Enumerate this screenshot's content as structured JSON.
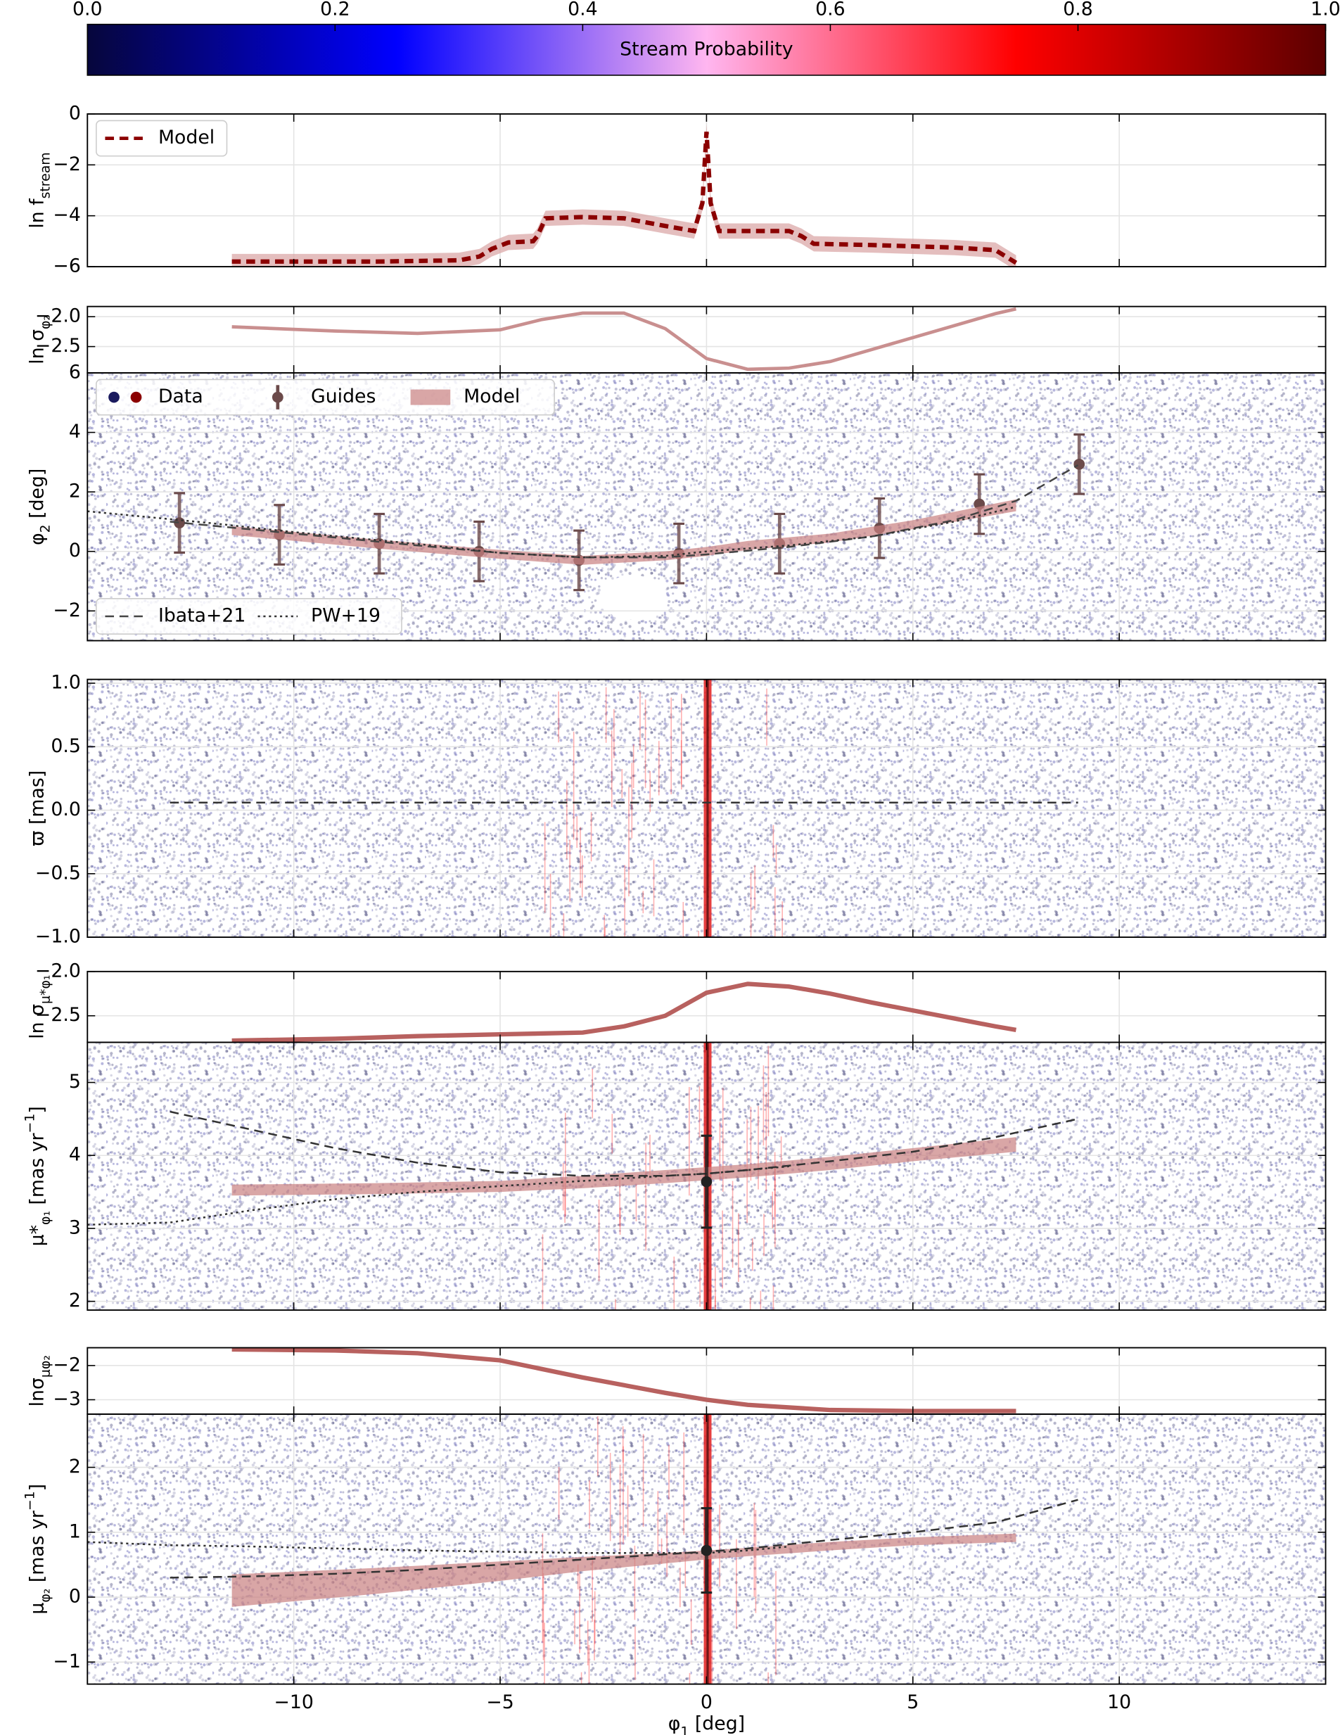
{
  "chart_data": [
    {
      "type": "colorbar",
      "label": "Stream Probability",
      "xlim": [
        0,
        1
      ],
      "xticks": [
        {
          "value": 0,
          "label": "0.0"
        },
        0.2,
        0.4,
        0.6,
        0.8,
        {
          "value": 1,
          "label": "1.0"
        }
      ],
      "colormap": [
        "#06063c",
        "#0000ff",
        "#ffb6f0",
        "#ff0000",
        "#5c0000"
      ]
    },
    {
      "type": "line",
      "ylabel": [
        {
          "text": "ln f"
        },
        {
          "text": "stream",
          "sub": true
        }
      ],
      "ylim": [
        -6,
        0
      ],
      "yticks": [
        {
          "value": -6,
          "label": "−6"
        },
        {
          "value": -4,
          "label": "−4"
        },
        {
          "value": -2,
          "label": "−2"
        },
        0
      ],
      "grid": true,
      "legend_loc": [
        "upper left"
      ],
      "series": [
        {
          "kind": "band",
          "color": "#d9a3a3",
          "x": [
            -11.5,
            -8,
            -6,
            -5.5,
            -5.2,
            -4.8,
            -4.2,
            -4.1,
            -3.9,
            -3,
            -2,
            -1,
            -0.3,
            -0.1,
            0,
            0.1,
            0.3,
            1,
            2,
            2.3,
            2.6,
            4,
            6,
            7,
            7.5
          ],
          "lower": [
            -6.1,
            -6.1,
            -6.05,
            -5.9,
            -5.6,
            -5.35,
            -5.3,
            -5.1,
            -4.4,
            -4.35,
            -4.4,
            -4.7,
            -4.9,
            -3.8,
            -1.0,
            -3.8,
            -4.9,
            -4.9,
            -4.9,
            -5.1,
            -5.4,
            -5.45,
            -5.55,
            -5.65,
            -6.15
          ],
          "upper": [
            -5.5,
            -5.5,
            -5.45,
            -5.3,
            -5.0,
            -4.75,
            -4.7,
            -4.5,
            -3.8,
            -3.75,
            -3.8,
            -4.1,
            -4.3,
            -3.2,
            -0.4,
            -3.2,
            -4.3,
            -4.3,
            -4.3,
            -4.5,
            -4.8,
            -4.85,
            -4.95,
            -5.05,
            -5.55
          ]
        },
        {
          "name": "Model",
          "kind": "line",
          "style": "dashed",
          "color": "#8b0000",
          "width": 4,
          "legend": 0,
          "x": [
            -11.5,
            -8,
            -6,
            -5.5,
            -5.2,
            -4.8,
            -4.2,
            -4.1,
            -3.9,
            -3,
            -2,
            -1,
            -0.3,
            -0.1,
            0,
            0.1,
            0.3,
            1,
            2,
            2.3,
            2.6,
            4,
            6,
            7,
            7.5
          ],
          "values": [
            -5.8,
            -5.8,
            -5.75,
            -5.6,
            -5.3,
            -5.05,
            -5.0,
            -4.8,
            -4.1,
            -4.05,
            -4.1,
            -4.4,
            -4.6,
            -3.5,
            -0.7,
            -3.5,
            -4.6,
            -4.6,
            -4.6,
            -4.8,
            -5.1,
            -5.15,
            -5.25,
            -5.35,
            -5.85
          ]
        }
      ]
    },
    {
      "type": "line",
      "ylabel": [
        {
          "text": "ln σ"
        },
        {
          "text": "φ₂",
          "sub": true
        }
      ],
      "ylim": [
        -2.94,
        -1.83
      ],
      "yticks": [
        {
          "value": -2.5,
          "label": "−2.5"
        },
        {
          "value": -2.0,
          "label": "−2.0"
        }
      ],
      "grid": true,
      "series": [
        {
          "kind": "line",
          "style": "solid",
          "color": "#c98f8f",
          "width": 3,
          "x": [
            -11.5,
            -9,
            -7,
            -5,
            -4,
            -3,
            -2,
            -1,
            0,
            1,
            2,
            3,
            4,
            5,
            6,
            7,
            7.5
          ],
          "values": [
            -2.17,
            -2.24,
            -2.28,
            -2.22,
            -2.05,
            -1.94,
            -1.94,
            -2.2,
            -2.7,
            -2.88,
            -2.86,
            -2.75,
            -2.55,
            -2.35,
            -2.15,
            -1.95,
            -1.87
          ]
        }
      ]
    },
    {
      "type": "scatter",
      "ylabel": [
        {
          "text": "φ"
        },
        {
          "text": "2",
          "sub": true
        },
        {
          "text": " [deg]"
        }
      ],
      "ylim": [
        -3,
        6
      ],
      "yticks": [
        {
          "value": -2,
          "label": "−2"
        },
        0,
        2,
        4,
        6
      ],
      "grid": true,
      "background": "scatter",
      "legend_loc": [
        "upper left",
        "lower left"
      ],
      "series": [
        {
          "name": "Data",
          "kind": "texture",
          "colors": [
            "#1a1a5e",
            "#8b0000"
          ],
          "legend": 0
        },
        {
          "name": "Guides",
          "kind": "errorbar",
          "color": "#6b4a4a",
          "legend": 0,
          "x": [
            -12.77,
            -10.35,
            -7.93,
            -5.51,
            -3.09,
            -0.67,
            1.77,
            4.19,
            6.61,
            9.03
          ],
          "values": [
            0.96,
            0.56,
            0.26,
            0.0,
            -0.3,
            -0.07,
            0.26,
            0.78,
            1.59,
            2.93
          ],
          "err": [
            1,
            1,
            1,
            1,
            1,
            1,
            1,
            1,
            1,
            1
          ]
        },
        {
          "name": "Model",
          "kind": "band",
          "color": "#c98080",
          "legend": 0,
          "x": [
            -11.5,
            -8,
            -5,
            -3,
            -1,
            0,
            1,
            3,
            5,
            7.5
          ],
          "lower": [
            0.55,
            0.1,
            -0.25,
            -0.45,
            -0.3,
            -0.15,
            0.05,
            0.3,
            0.75,
            1.35
          ],
          "upper": [
            0.85,
            0.4,
            0.05,
            -0.15,
            0.0,
            0.15,
            0.35,
            0.6,
            1.05,
            1.75
          ]
        },
        {
          "name": "Ibata+21",
          "kind": "line",
          "style": "dashed",
          "color": "#444444",
          "width": 1.6,
          "legend": 1,
          "x": [
            -13,
            -10,
            -7,
            -5,
            -3,
            -1,
            0,
            2,
            4,
            6,
            7.5,
            9
          ],
          "values": [
            1.0,
            0.6,
            0.2,
            -0.05,
            -0.2,
            -0.2,
            -0.1,
            0.15,
            0.5,
            1.05,
            1.7,
            2.9
          ]
        },
        {
          "name": "PW+19",
          "kind": "line",
          "style": "dotted",
          "color": "#333333",
          "width": 1.6,
          "legend": 1,
          "x": [
            -15,
            -12,
            -10,
            -7,
            -5,
            -3,
            -1,
            0,
            2,
            4,
            6,
            7.5
          ],
          "values": [
            1.35,
            0.95,
            0.65,
            0.25,
            -0.05,
            -0.2,
            -0.15,
            0.0,
            0.2,
            0.5,
            1.0,
            1.5
          ]
        }
      ]
    },
    {
      "type": "scatter",
      "ylabel": [
        {
          "text": "ϖ [mas]"
        }
      ],
      "ylim": [
        -1.0,
        1.03
      ],
      "yticks": [
        {
          "value": -1.0,
          "label": "−1.0"
        },
        {
          "value": -0.5,
          "label": "−0.5"
        },
        {
          "value": 0,
          "label": "0.0"
        },
        0.5,
        {
          "value": 1.0,
          "label": "1.0"
        }
      ],
      "grid": true,
      "background": "scatter",
      "stream_strip": true,
      "series": [
        {
          "kind": "line",
          "style": "dashed",
          "color": "#333333",
          "width": 1.6,
          "x": [
            -13,
            9
          ],
          "values": [
            0.06,
            0.06
          ]
        }
      ]
    },
    {
      "type": "line",
      "ylabel": [
        {
          "text": "ln σ"
        },
        {
          "text": "μ*φ₁",
          "sub": true
        }
      ],
      "ylim": [
        -2.8,
        -2.0
      ],
      "yticks": [
        {
          "value": -2.5,
          "label": "−2.5"
        },
        {
          "value": -2.0,
          "label": "−2.0"
        }
      ],
      "grid": true,
      "series": [
        {
          "kind": "line",
          "style": "solid",
          "color": "#b8615f",
          "width": 4,
          "x": [
            -11.5,
            -9,
            -7,
            -5,
            -3,
            -2,
            -1,
            0,
            1,
            2,
            3,
            4,
            5,
            6,
            7,
            7.5
          ],
          "values": [
            -2.78,
            -2.76,
            -2.73,
            -2.71,
            -2.69,
            -2.62,
            -2.5,
            -2.24,
            -2.14,
            -2.17,
            -2.25,
            -2.35,
            -2.44,
            -2.53,
            -2.62,
            -2.66
          ]
        }
      ]
    },
    {
      "type": "scatter",
      "ylabel": [
        {
          "text": "μ*"
        },
        {
          "text": "φ₁",
          "sub": true
        },
        {
          "text": " [mas yr"
        },
        {
          "text": "−1",
          "sup": true
        },
        {
          "text": "]"
        }
      ],
      "ylim": [
        1.88,
        5.55
      ],
      "yticks": [
        2,
        3,
        4,
        5
      ],
      "grid": true,
      "background": "scatter",
      "stream_strip": true,
      "series": [
        {
          "kind": "band",
          "color": "#c98080",
          "x": [
            -11.5,
            -8,
            -5,
            -3,
            -1,
            0,
            1,
            3,
            5,
            7.5
          ],
          "lower": [
            3.45,
            3.47,
            3.5,
            3.55,
            3.62,
            3.66,
            3.7,
            3.8,
            3.92,
            4.05
          ],
          "upper": [
            3.6,
            3.62,
            3.65,
            3.72,
            3.8,
            3.84,
            3.88,
            3.98,
            4.1,
            4.25
          ]
        },
        {
          "kind": "line",
          "style": "dashed",
          "color": "#333333",
          "width": 1.6,
          "x": [
            -13,
            -11,
            -9,
            -7,
            -5,
            -3,
            -1,
            0,
            1,
            3,
            5,
            7,
            9
          ],
          "values": [
            4.6,
            4.35,
            4.1,
            3.9,
            3.77,
            3.72,
            3.72,
            3.75,
            3.8,
            3.92,
            4.05,
            4.25,
            4.5
          ]
        },
        {
          "kind": "line",
          "style": "dotted",
          "color": "#333333",
          "width": 1.6,
          "x": [
            -15,
            -13,
            -11,
            -9,
            -7,
            -5,
            -3,
            -1,
            0,
            1,
            2
          ],
          "values": [
            3.05,
            3.08,
            3.25,
            3.4,
            3.5,
            3.58,
            3.65,
            3.72,
            3.75,
            3.8,
            3.85
          ]
        },
        {
          "kind": "errorbar",
          "color": "#222222",
          "x": [
            0
          ],
          "values": [
            3.64
          ],
          "err": [
            0.63
          ]
        }
      ]
    },
    {
      "type": "line",
      "ylabel": [
        {
          "text": "lnσ"
        },
        {
          "text": "μφ₂",
          "sub": true
        }
      ],
      "ylim": [
        -3.42,
        -1.48
      ],
      "yticks": [
        {
          "value": -3,
          "label": "−3"
        },
        {
          "value": -2,
          "label": "−2"
        }
      ],
      "grid": true,
      "series": [
        {
          "kind": "line",
          "style": "solid",
          "color": "#b8615f",
          "width": 4,
          "x": [
            -11.5,
            -9,
            -7,
            -5,
            -3,
            -1,
            0,
            1,
            3,
            5,
            7.5
          ],
          "values": [
            -1.53,
            -1.56,
            -1.64,
            -1.85,
            -2.35,
            -2.8,
            -3.0,
            -3.15,
            -3.3,
            -3.33,
            -3.33
          ]
        }
      ]
    },
    {
      "type": "scatter",
      "ylabel": [
        {
          "text": "μ"
        },
        {
          "text": "φ₂",
          "sub": true
        },
        {
          "text": " [mas yr"
        },
        {
          "text": "−1",
          "sup": true
        },
        {
          "text": "]"
        }
      ],
      "ylim": [
        -1.34,
        2.82
      ],
      "yticks": [
        {
          "value": -1,
          "label": "−1"
        },
        0,
        1,
        2
      ],
      "grid": true,
      "background": "scatter",
      "stream_strip": true,
      "xlabel": [
        {
          "text": "φ"
        },
        {
          "text": "1",
          "sub": true
        },
        {
          "text": " [deg]"
        }
      ],
      "xlim": [
        -15,
        15
      ],
      "xticks": [
        {
          "value": -10,
          "label": "−10"
        },
        {
          "value": -5,
          "label": "−5"
        },
        0,
        5,
        10
      ],
      "series": [
        {
          "kind": "band",
          "color": "#c98080",
          "x": [
            -11.5,
            -8,
            -5,
            -3,
            -1,
            0,
            1,
            3,
            5,
            7.5
          ],
          "lower": [
            -0.15,
            0.05,
            0.25,
            0.4,
            0.52,
            0.58,
            0.63,
            0.72,
            0.8,
            0.85
          ],
          "upper": [
            0.35,
            0.45,
            0.55,
            0.62,
            0.68,
            0.72,
            0.76,
            0.85,
            0.92,
            0.98
          ]
        },
        {
          "kind": "line",
          "style": "dashed",
          "color": "#333333",
          "width": 1.6,
          "x": [
            -13,
            -11,
            -9,
            -7,
            -5,
            -3,
            -1,
            0,
            1,
            3,
            5,
            7,
            9
          ],
          "values": [
            0.3,
            0.32,
            0.36,
            0.42,
            0.5,
            0.58,
            0.66,
            0.7,
            0.75,
            0.88,
            1.0,
            1.15,
            1.5
          ]
        },
        {
          "kind": "line",
          "style": "dotted",
          "color": "#333333",
          "width": 1.6,
          "x": [
            -15,
            -13,
            -11,
            -9,
            -7,
            -5,
            -3,
            -1,
            0,
            1,
            2
          ],
          "values": [
            0.85,
            0.8,
            0.78,
            0.75,
            0.72,
            0.7,
            0.68,
            0.68,
            0.68,
            0.72,
            0.78
          ]
        },
        {
          "kind": "errorbar",
          "color": "#222222",
          "x": [
            0
          ],
          "values": [
            0.72
          ],
          "err": [
            0.65
          ]
        }
      ]
    }
  ]
}
